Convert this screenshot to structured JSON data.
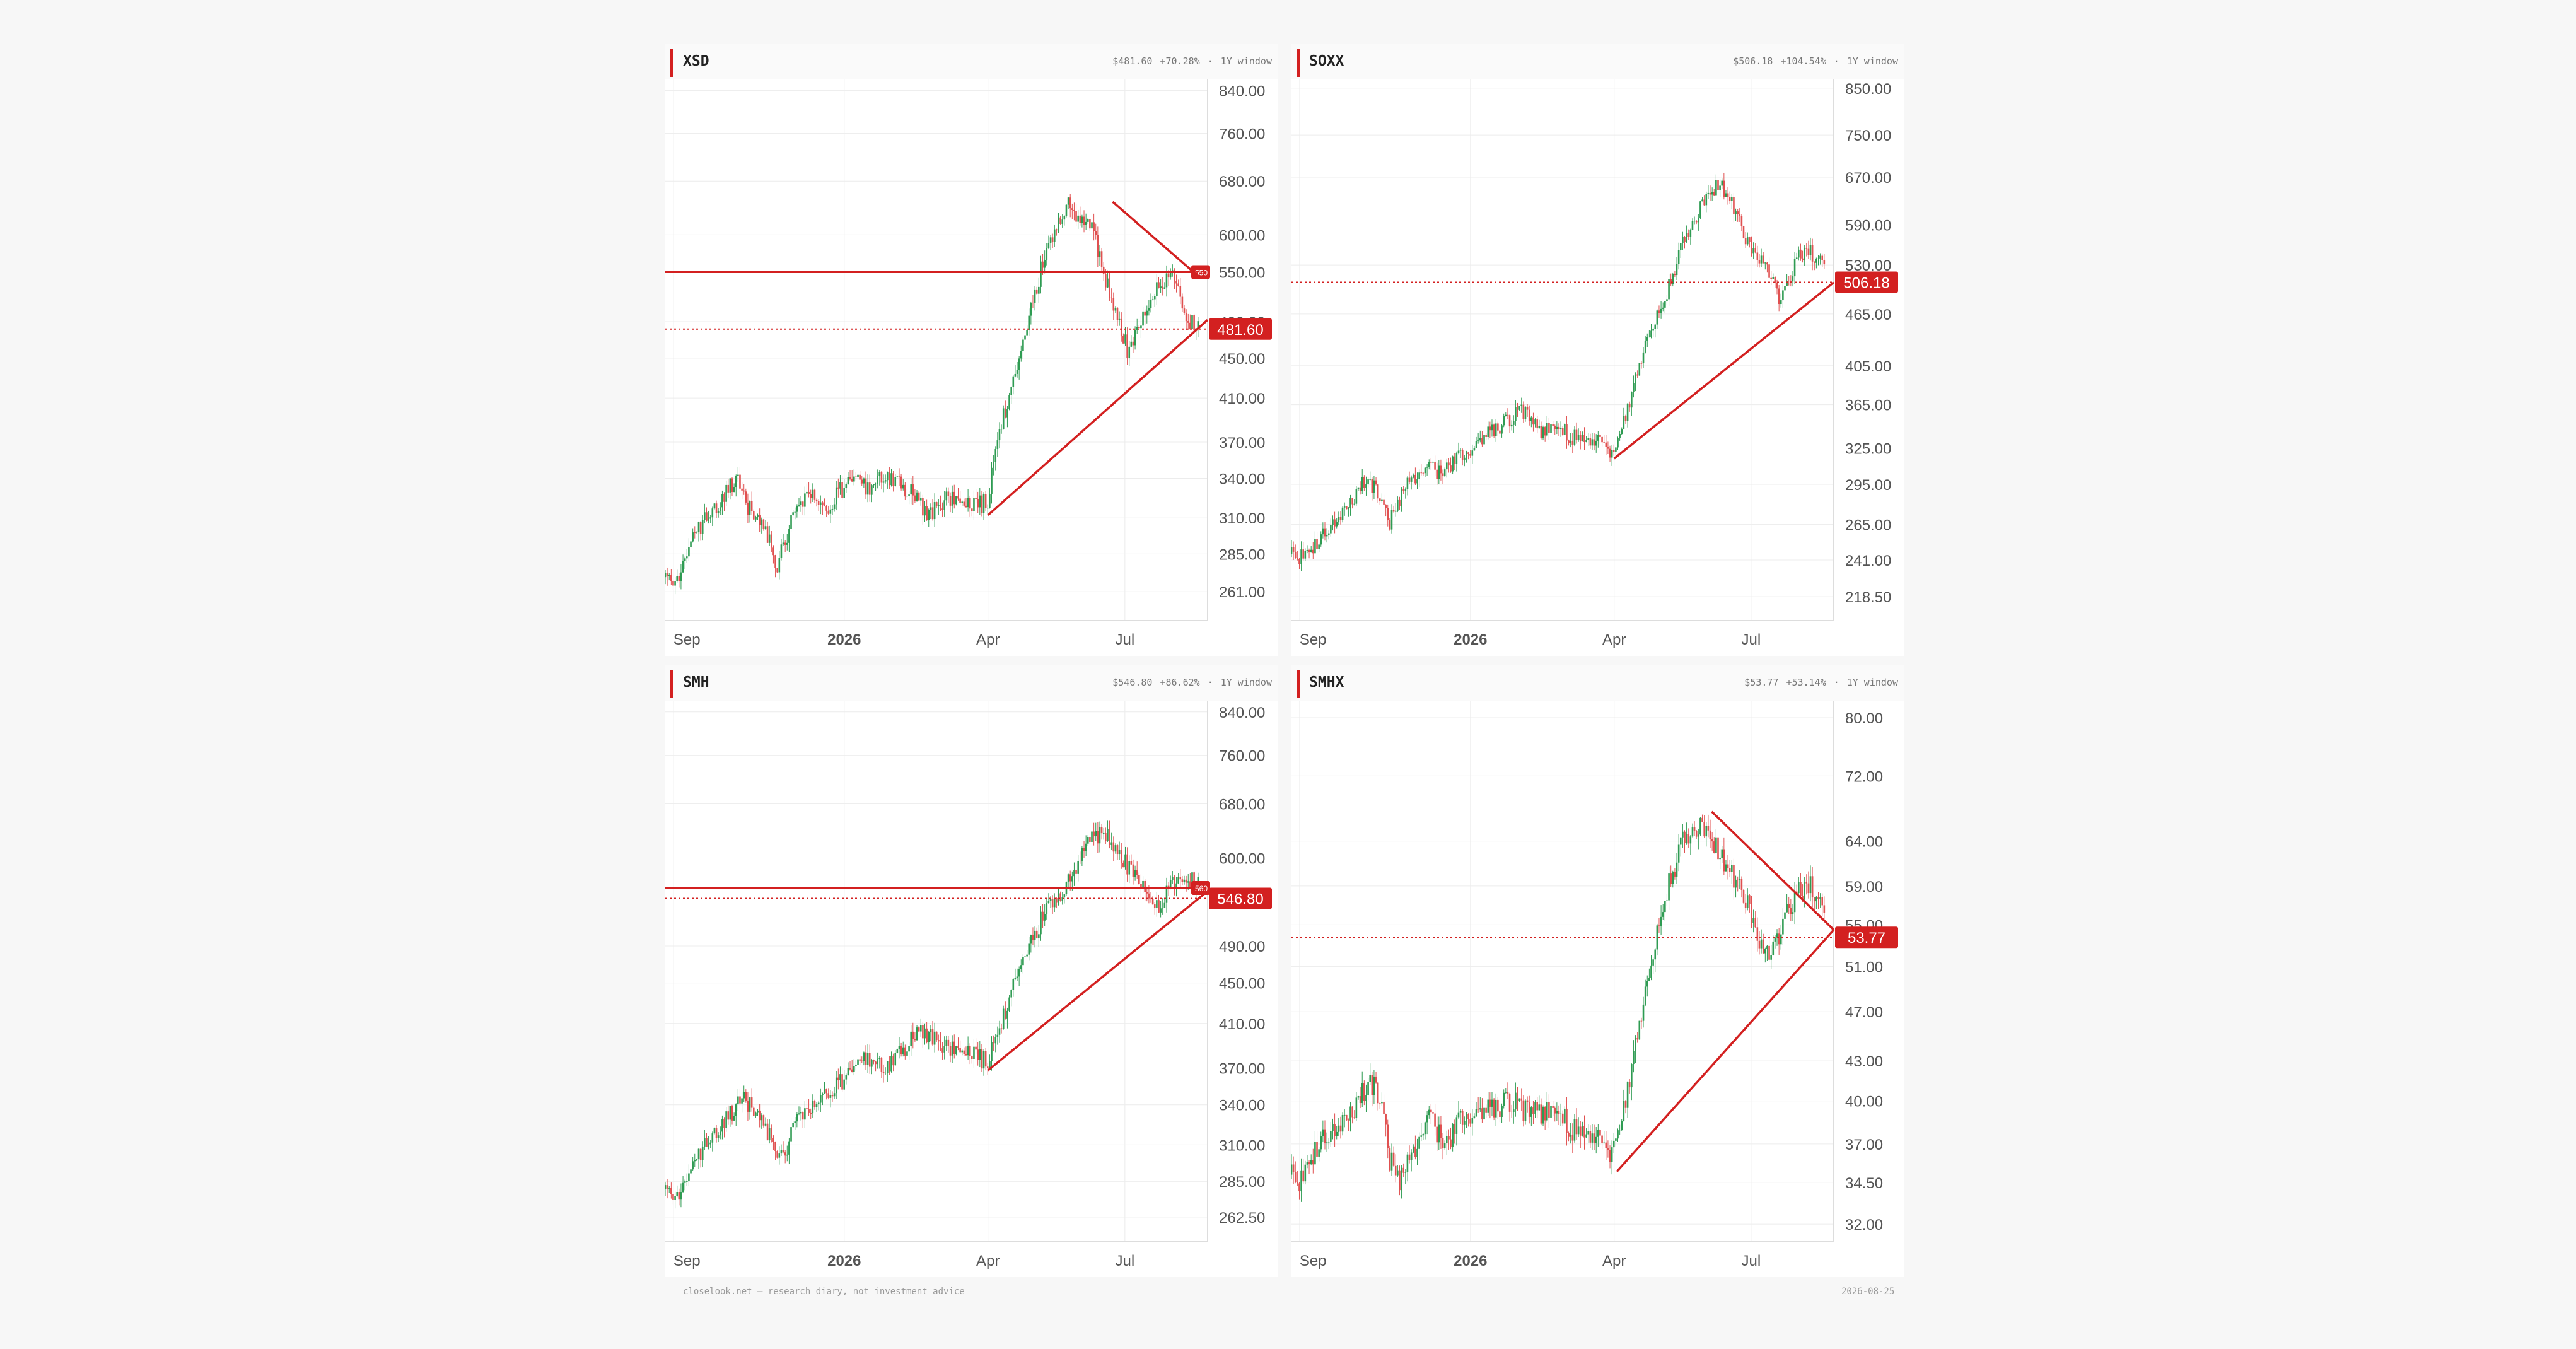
{
  "colors": {
    "up": "#2e9b52",
    "down": "#e05050",
    "trend": "#d32020",
    "grid": "#ececec",
    "axis_text": "#555555",
    "price_tag_bg": "#d32020"
  },
  "footer": {
    "left": "closelook.net — research diary, not investment advice",
    "right": "2026-08-25"
  },
  "chart_data": [
    {
      "type": "candlestick",
      "ticker": "XSD",
      "price_label": "$481.60",
      "change_label": "+70.28%",
      "separator": "·",
      "window_label": "1Y window",
      "last_price": 481.6,
      "last_price_tag": "481.60",
      "y_scale": "log",
      "ylim": [
        244,
        862
      ],
      "yticks": [
        "261.00",
        "285.00",
        "310.00",
        "340.00",
        "370.00",
        "410.00",
        "450.00",
        "490.00",
        "550.00",
        "600.00",
        "680.00",
        "760.00",
        "840.00"
      ],
      "ytick_values": [
        261,
        285,
        310,
        340,
        370,
        410,
        450,
        490,
        550,
        600,
        680,
        760,
        840
      ],
      "xticks": [
        "Sep",
        "2026",
        "Apr",
        "Jul"
      ],
      "xtick_days": [
        6,
        132,
        238,
        339
      ],
      "days": 400,
      "series_anchors": [
        [
          0,
          270
        ],
        [
          8,
          268
        ],
        [
          20,
          298
        ],
        [
          40,
          320
        ],
        [
          52,
          340
        ],
        [
          60,
          320
        ],
        [
          75,
          300
        ],
        [
          82,
          276
        ],
        [
          92,
          305
        ],
        [
          106,
          330
        ],
        [
          118,
          312
        ],
        [
          128,
          330
        ],
        [
          140,
          340
        ],
        [
          148,
          332
        ],
        [
          162,
          345
        ],
        [
          178,
          332
        ],
        [
          196,
          312
        ],
        [
          208,
          325
        ],
        [
          226,
          318
        ],
        [
          238,
          322
        ],
        [
          246,
          380
        ],
        [
          258,
          430
        ],
        [
          268,
          490
        ],
        [
          278,
          560
        ],
        [
          290,
          625
        ],
        [
          298,
          648
        ],
        [
          308,
          612
        ],
        [
          316,
          605
        ],
        [
          322,
          558
        ],
        [
          334,
          490
        ],
        [
          342,
          455
        ],
        [
          350,
          492
        ],
        [
          358,
          520
        ],
        [
          366,
          532
        ],
        [
          376,
          545
        ],
        [
          385,
          495
        ],
        [
          393,
          482
        ]
      ],
      "h_level": 550,
      "h_level_tag": "550",
      "trend_up": [
        [
          238,
          312
        ],
        [
          400,
          492
        ]
      ],
      "trend_down": [
        [
          330,
          648
        ],
        [
          393,
          545
        ]
      ]
    },
    {
      "type": "candlestick",
      "ticker": "SOXX",
      "price_label": "$506.18",
      "change_label": "+104.54%",
      "separator": "·",
      "window_label": "1Y window",
      "last_price": 506.18,
      "last_price_tag": "506.18",
      "y_scale": "log",
      "ylim": [
        205,
        870
      ],
      "yticks": [
        "218.50",
        "241.00",
        "265.00",
        "295.00",
        "325.00",
        "365.00",
        "405.00",
        "465.00",
        "530.00",
        "590.00",
        "670.00",
        "750.00",
        "850.00"
      ],
      "ytick_values": [
        218.5,
        241,
        265,
        295,
        325,
        365,
        405,
        465,
        530,
        590,
        670,
        750,
        850
      ],
      "xticks": [
        "Sep",
        "2026",
        "Apr",
        "Jul"
      ],
      "xtick_days": [
        6,
        132,
        238,
        339
      ],
      "days": 400,
      "series_anchors": [
        [
          0,
          245
        ],
        [
          10,
          242
        ],
        [
          24,
          258
        ],
        [
          40,
          275
        ],
        [
          55,
          300
        ],
        [
          64,
          288
        ],
        [
          72,
          265
        ],
        [
          84,
          292
        ],
        [
          98,
          310
        ],
        [
          110,
          305
        ],
        [
          128,
          320
        ],
        [
          146,
          340
        ],
        [
          160,
          350
        ],
        [
          170,
          360
        ],
        [
          182,
          340
        ],
        [
          192,
          345
        ],
        [
          208,
          335
        ],
        [
          228,
          330
        ],
        [
          238,
          315
        ],
        [
          250,
          370
        ],
        [
          262,
          430
        ],
        [
          275,
          480
        ],
        [
          288,
          560
        ],
        [
          302,
          620
        ],
        [
          316,
          660
        ],
        [
          326,
          620
        ],
        [
          336,
          560
        ],
        [
          350,
          525
        ],
        [
          360,
          485
        ],
        [
          366,
          500
        ],
        [
          372,
          538
        ],
        [
          382,
          550
        ],
        [
          396,
          520
        ],
        [
          400,
          510
        ]
      ],
      "trend_up": [
        [
          238,
          316
        ],
        [
          400,
          506
        ]
      ]
    },
    {
      "type": "candlestick",
      "ticker": "SMH",
      "price_label": "$546.80",
      "change_label": "+86.62%",
      "separator": "·",
      "window_label": "1Y window",
      "last_price": 546.8,
      "last_price_tag": "546.80",
      "y_scale": "log",
      "ylim": [
        248,
        862
      ],
      "yticks": [
        "262.50",
        "285.00",
        "310.00",
        "340.00",
        "370.00",
        "410.00",
        "450.00",
        "490.00",
        "550.00",
        "600.00",
        "680.00",
        "760.00",
        "840.00"
      ],
      "ytick_values": [
        262.5,
        285,
        310,
        340,
        370,
        410,
        450,
        490,
        550,
        600,
        680,
        760,
        840
      ],
      "xticks": [
        "Sep",
        "2026",
        "Apr",
        "Jul"
      ],
      "xtick_days": [
        6,
        132,
        238,
        339
      ],
      "days": 400,
      "series_anchors": [
        [
          0,
          280
        ],
        [
          8,
          276
        ],
        [
          22,
          300
        ],
        [
          40,
          322
        ],
        [
          58,
          345
        ],
        [
          70,
          330
        ],
        [
          86,
          300
        ],
        [
          98,
          330
        ],
        [
          112,
          340
        ],
        [
          126,
          355
        ],
        [
          138,
          368
        ],
        [
          150,
          380
        ],
        [
          162,
          372
        ],
        [
          178,
          390
        ],
        [
          190,
          405
        ],
        [
          200,
          392
        ],
        [
          214,
          385
        ],
        [
          226,
          382
        ],
        [
          238,
          375
        ],
        [
          248,
          412
        ],
        [
          260,
          460
        ],
        [
          272,
          500
        ],
        [
          282,
          540
        ],
        [
          294,
          560
        ],
        [
          305,
          595
        ],
        [
          316,
          630
        ],
        [
          324,
          640
        ],
        [
          334,
          605
        ],
        [
          346,
          580
        ],
        [
          356,
          560
        ],
        [
          364,
          528
        ],
        [
          372,
          560
        ],
        [
          382,
          580
        ],
        [
          396,
          560
        ],
        [
          400,
          548
        ]
      ],
      "h_level": 560,
      "h_level_tag": "560",
      "trend_up": [
        [
          238,
          368
        ],
        [
          400,
          556
        ]
      ]
    },
    {
      "type": "candlestick",
      "ticker": "SMHX",
      "price_label": "$53.77",
      "change_label": "+53.14%",
      "separator": "·",
      "window_label": "1Y window",
      "last_price": 53.77,
      "last_price_tag": "53.77",
      "y_scale": "log",
      "ylim": [
        31,
        82.5
      ],
      "yticks": [
        "32.00",
        "34.50",
        "37.00",
        "40.00",
        "43.00",
        "47.00",
        "51.00",
        "55.00",
        "59.00",
        "64.00",
        "72.00",
        "80.00"
      ],
      "ytick_values": [
        32,
        34.5,
        37,
        40,
        43,
        47,
        51,
        55,
        59,
        64,
        72,
        80
      ],
      "xticks": [
        "Sep",
        "2026",
        "Apr",
        "Jul"
      ],
      "xtick_days": [
        6,
        132,
        238,
        339
      ],
      "days": 400,
      "series_anchors": [
        [
          0,
          35
        ],
        [
          8,
          34.5
        ],
        [
          20,
          37
        ],
        [
          40,
          38.5
        ],
        [
          58,
          41.5
        ],
        [
          66,
          40
        ],
        [
          72,
          36
        ],
        [
          80,
          34.5
        ],
        [
          88,
          36
        ],
        [
          100,
          39
        ],
        [
          114,
          37
        ],
        [
          128,
          39
        ],
        [
          146,
          39.5
        ],
        [
          162,
          40
        ],
        [
          176,
          39
        ],
        [
          192,
          39.5
        ],
        [
          208,
          38
        ],
        [
          224,
          37.5
        ],
        [
          236,
          36
        ],
        [
          242,
          37.5
        ],
        [
          252,
          43
        ],
        [
          264,
          50
        ],
        [
          276,
          58
        ],
        [
          288,
          64
        ],
        [
          300,
          66
        ],
        [
          310,
          64
        ],
        [
          318,
          62
        ],
        [
          326,
          60
        ],
        [
          336,
          57
        ],
        [
          348,
          52
        ],
        [
          354,
          52
        ],
        [
          362,
          55
        ],
        [
          372,
          58
        ],
        [
          384,
          59
        ],
        [
          392,
          56
        ],
        [
          400,
          54
        ]
      ],
      "trend_up": [
        [
          240,
          35.2
        ],
        [
          400,
          54.5
        ]
      ],
      "trend_down": [
        [
          310,
          67.5
        ],
        [
          400,
          54.5
        ]
      ]
    }
  ]
}
